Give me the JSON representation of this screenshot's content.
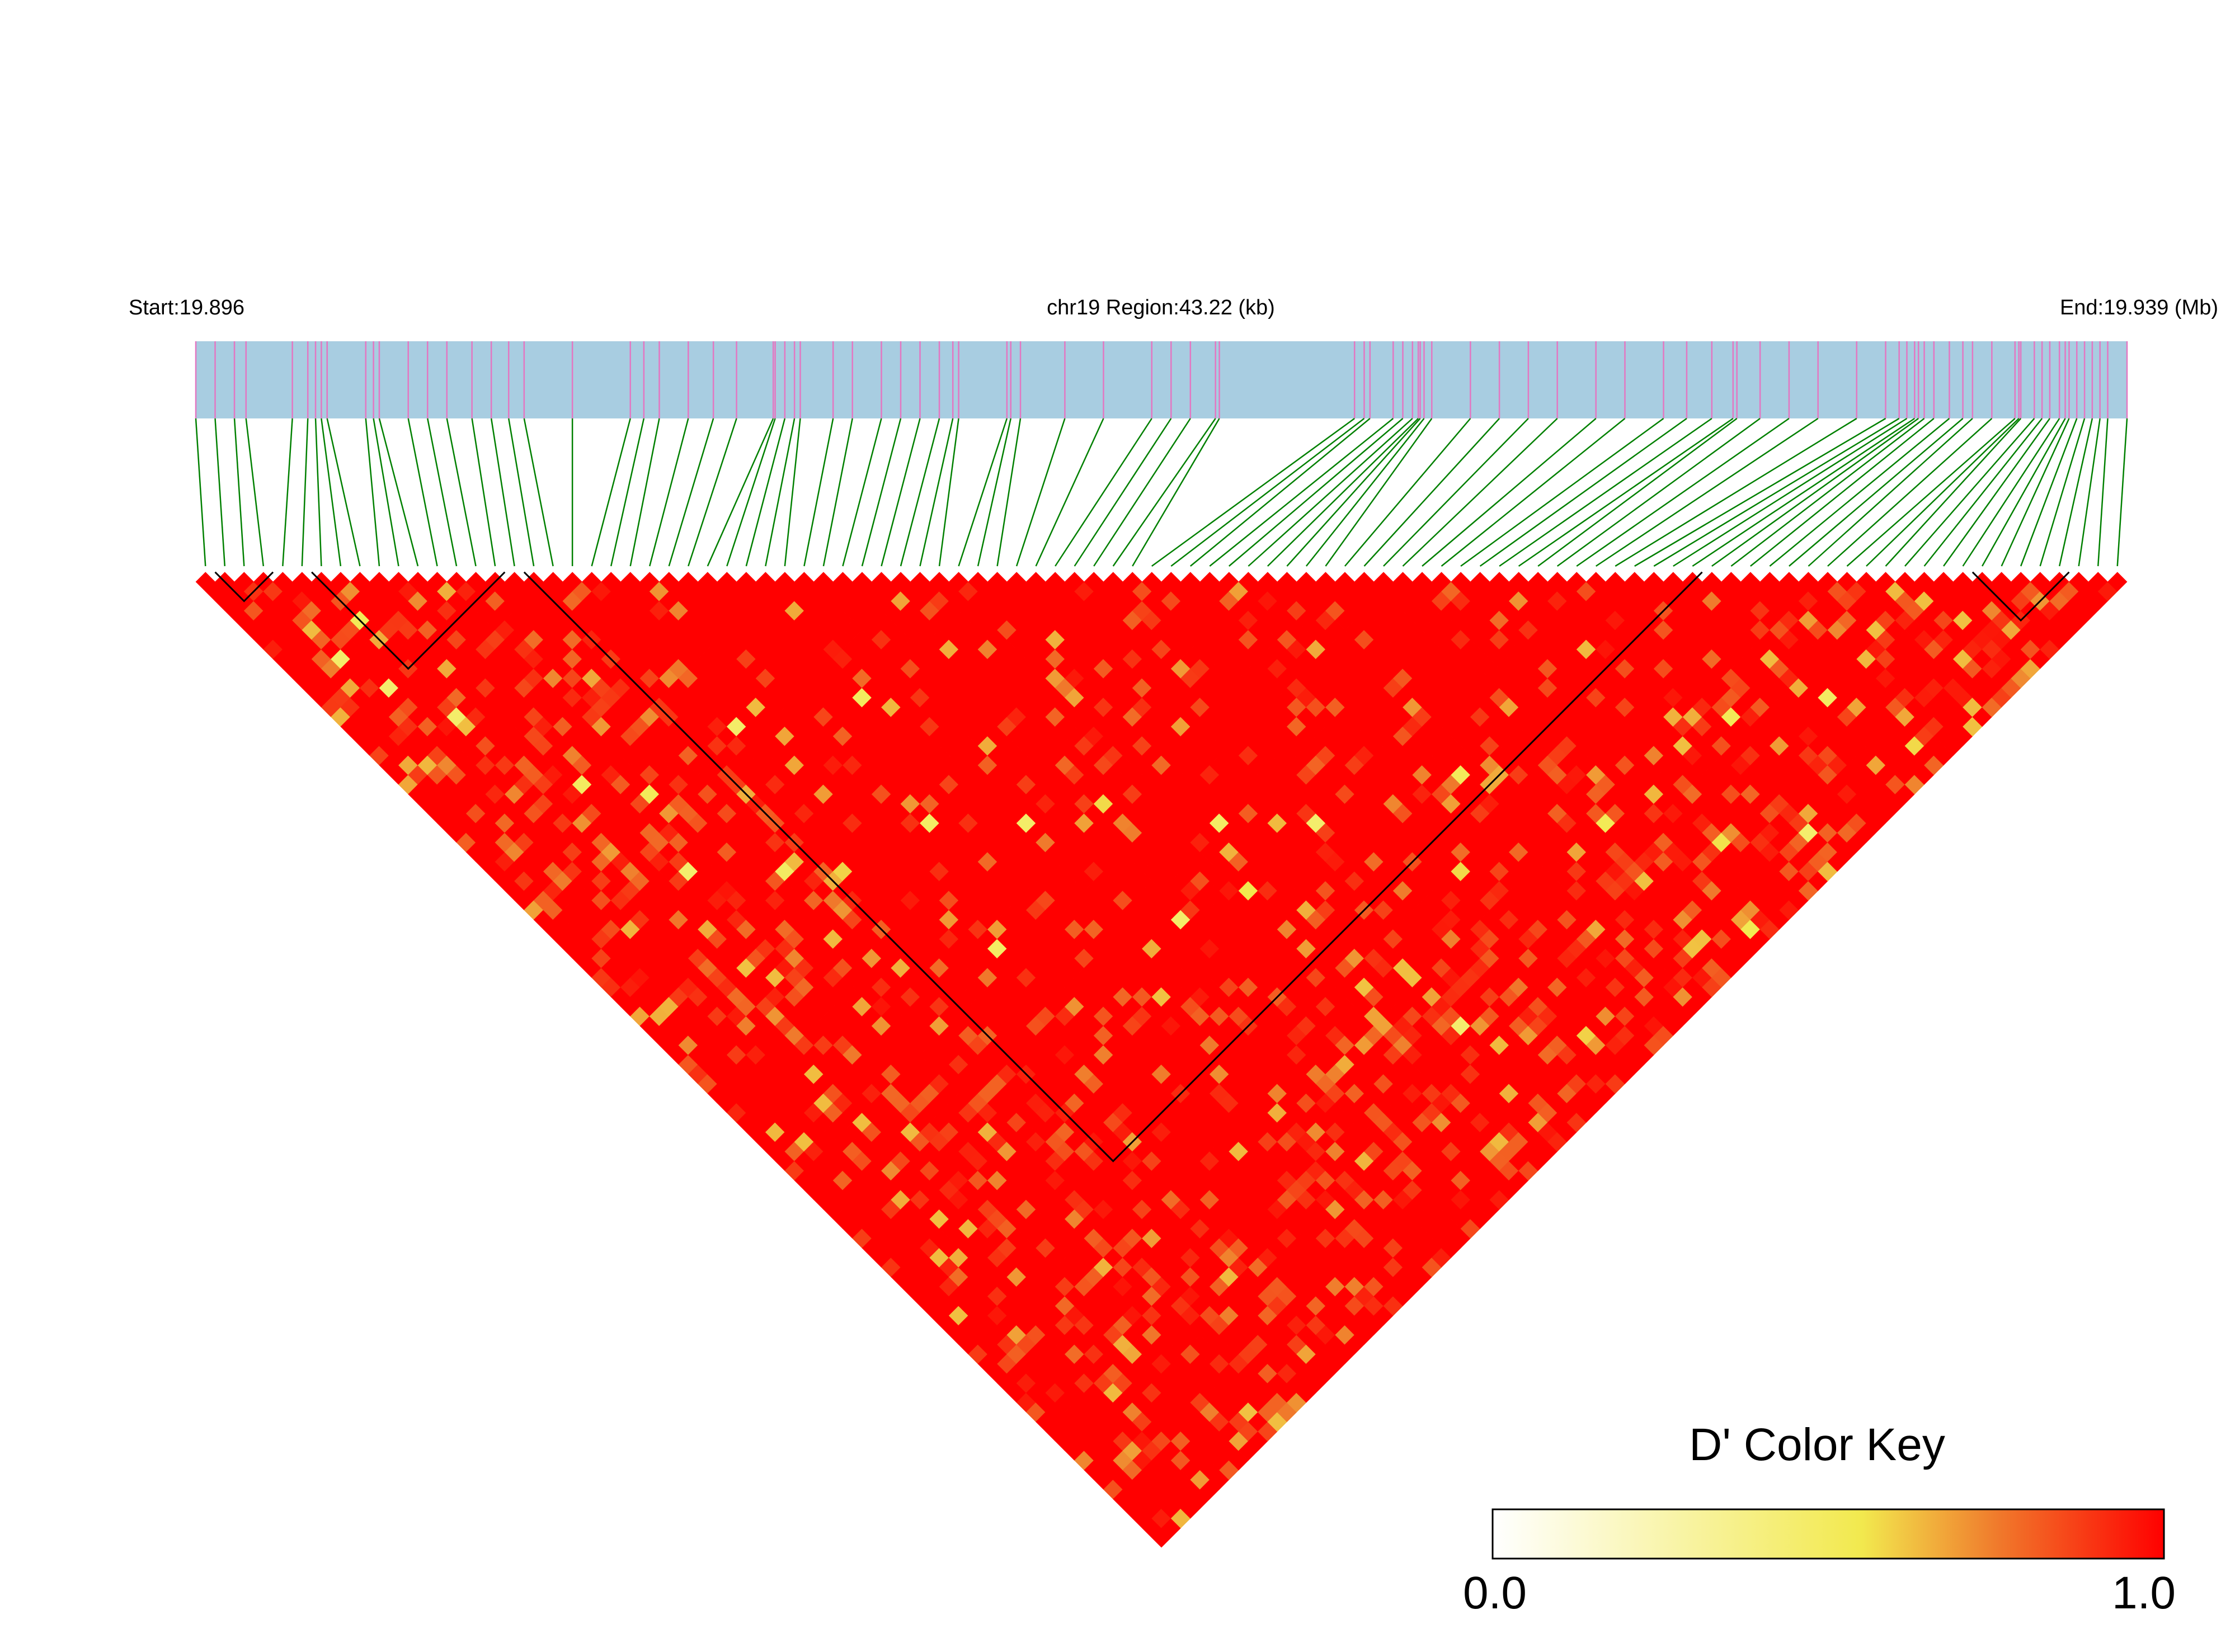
{
  "header": {
    "start_label": "Start:19.896",
    "region_label": "chr19 Region:43.22 (kb)",
    "end_label": "End:19.939 (Mb)"
  },
  "chart_data": {
    "type": "heatmap",
    "subtype": "LD block triangle (D')",
    "chromosome": "chr19",
    "region_start_mb": 19.896,
    "region_end_mb": 19.939,
    "region_length_kb": 43.22,
    "n_snps": 100,
    "snp_positions_relative": [
      0.0,
      0.01,
      0.02,
      0.026,
      0.05,
      0.058,
      0.062,
      0.065,
      0.068,
      0.088,
      0.092,
      0.095,
      0.11,
      0.12,
      0.13,
      0.143,
      0.153,
      0.162,
      0.17,
      0.195,
      0.225,
      0.232,
      0.24,
      0.255,
      0.268,
      0.28,
      0.299,
      0.3,
      0.305,
      0.31,
      0.313,
      0.33,
      0.34,
      0.355,
      0.365,
      0.375,
      0.385,
      0.392,
      0.395,
      0.42,
      0.422,
      0.427,
      0.45,
      0.47,
      0.495,
      0.505,
      0.515,
      0.528,
      0.53,
      0.6,
      0.605,
      0.608,
      0.62,
      0.625,
      0.63,
      0.633,
      0.634,
      0.636,
      0.64,
      0.66,
      0.675,
      0.69,
      0.705,
      0.725,
      0.74,
      0.76,
      0.772,
      0.785,
      0.796,
      0.798,
      0.81,
      0.825,
      0.84,
      0.86,
      0.875,
      0.882,
      0.886,
      0.89,
      0.892,
      0.895,
      0.9,
      0.908,
      0.915,
      0.92,
      0.93,
      0.942,
      0.944,
      0.945,
      0.952,
      0.956,
      0.96,
      0.965,
      0.968,
      0.97,
      0.974,
      0.978,
      0.982,
      0.986,
      0.99,
      1.0
    ],
    "blocks": [
      {
        "first_snp": 1,
        "last_snp": 3
      },
      {
        "first_snp": 6,
        "last_snp": 15
      },
      {
        "first_snp": 17,
        "last_snp": 77
      },
      {
        "first_snp": 92,
        "last_snp": 96
      }
    ],
    "dprime_overall": "predominantly 1.0 (red) with scattered lower values (orange/yellow) mainly toward the triangle edges",
    "dprime_pale_pairs": [
      [
        3,
        11
      ],
      [
        6,
        10
      ],
      [
        4,
        15
      ],
      [
        6,
        20
      ],
      [
        9,
        30
      ],
      [
        12,
        34
      ],
      [
        20,
        35
      ],
      [
        28,
        40
      ],
      [
        40,
        65
      ],
      [
        45,
        70
      ],
      [
        60,
        85
      ],
      [
        72,
        86
      ],
      [
        78,
        90
      ],
      [
        30,
        55
      ],
      [
        25,
        50
      ],
      [
        50,
        80
      ],
      [
        65,
        92
      ],
      [
        55,
        75
      ],
      [
        35,
        58
      ],
      [
        15,
        45
      ],
      [
        18,
        48
      ],
      [
        22,
        60
      ],
      [
        48,
        95
      ],
      [
        62,
        98
      ],
      [
        70,
        96
      ],
      [
        38,
        70
      ],
      [
        10,
        40
      ],
      [
        80,
        97
      ],
      [
        42,
        88
      ],
      [
        33,
        68
      ]
    ],
    "color_key": {
      "title": "D' Color Key",
      "min_label": "0.0",
      "max_label": "1.0",
      "colors": [
        "#ffffff",
        "#f2e94e",
        "#ff0000"
      ]
    },
    "colors": {
      "track_bar": "#a8cde1",
      "snp_tick": "#e377c2",
      "connector": "#008000",
      "high_ld": "#ff0000",
      "block_outline": "#000000"
    }
  }
}
